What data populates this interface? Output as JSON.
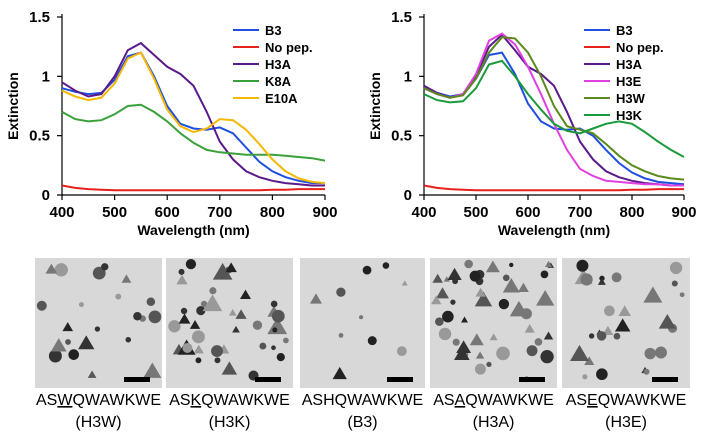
{
  "chart_data": [
    {
      "type": "line",
      "xlabel": "Wavelength (nm)",
      "ylabel": "Extinction",
      "x": [
        400,
        425,
        450,
        475,
        500,
        525,
        550,
        575,
        600,
        625,
        650,
        675,
        700,
        725,
        750,
        775,
        800,
        825,
        850,
        875,
        900
      ],
      "xlim": [
        400,
        900
      ],
      "xticks": [
        400,
        500,
        600,
        700,
        800,
        900
      ],
      "ylim": [
        0,
        1.5
      ],
      "yticks": [
        0,
        0.5,
        1,
        1.5
      ],
      "legend": "upper right",
      "series": [
        {
          "name": "B3",
          "color": "#1f4fe0",
          "values": [
            0.9,
            0.87,
            0.85,
            0.86,
            0.97,
            1.17,
            1.2,
            1.0,
            0.75,
            0.6,
            0.56,
            0.55,
            0.57,
            0.52,
            0.4,
            0.28,
            0.2,
            0.15,
            0.12,
            0.1,
            0.1
          ]
        },
        {
          "name": "No pep.",
          "color": "#e8201a",
          "values": [
            0.08,
            0.06,
            0.05,
            0.045,
            0.04,
            0.04,
            0.04,
            0.04,
            0.04,
            0.04,
            0.04,
            0.04,
            0.04,
            0.04,
            0.04,
            0.04,
            0.045,
            0.045,
            0.05,
            0.05,
            0.05
          ]
        },
        {
          "name": "H3A",
          "color": "#5a1a8a",
          "values": [
            0.95,
            0.88,
            0.83,
            0.85,
            1.0,
            1.22,
            1.28,
            1.18,
            1.08,
            1.02,
            0.92,
            0.7,
            0.45,
            0.3,
            0.2,
            0.15,
            0.12,
            0.1,
            0.09,
            0.08,
            0.08
          ]
        },
        {
          "name": "K8A",
          "color": "#3aa03a",
          "values": [
            0.7,
            0.64,
            0.62,
            0.63,
            0.68,
            0.75,
            0.76,
            0.7,
            0.62,
            0.52,
            0.44,
            0.38,
            0.36,
            0.35,
            0.34,
            0.34,
            0.34,
            0.33,
            0.32,
            0.31,
            0.29
          ]
        },
        {
          "name": "E10A",
          "color": "#f5b800",
          "values": [
            0.88,
            0.83,
            0.8,
            0.82,
            0.94,
            1.15,
            1.2,
            0.98,
            0.72,
            0.58,
            0.53,
            0.56,
            0.64,
            0.63,
            0.55,
            0.43,
            0.3,
            0.2,
            0.14,
            0.11,
            0.1
          ]
        }
      ]
    },
    {
      "type": "line",
      "xlabel": "Wavelength (nm)",
      "ylabel": "Extinction",
      "x": [
        400,
        425,
        450,
        475,
        500,
        525,
        550,
        575,
        600,
        625,
        650,
        675,
        700,
        725,
        750,
        775,
        800,
        825,
        850,
        875,
        900
      ],
      "xlim": [
        400,
        900
      ],
      "xticks": [
        400,
        500,
        600,
        700,
        800,
        900
      ],
      "ylim": [
        0,
        1.5
      ],
      "yticks": [
        0,
        0.5,
        1,
        1.5
      ],
      "legend": "upper right",
      "series": [
        {
          "name": "B3",
          "color": "#1f4fe0",
          "values": [
            0.9,
            0.86,
            0.83,
            0.85,
            0.98,
            1.18,
            1.2,
            1.02,
            0.77,
            0.62,
            0.56,
            0.55,
            0.56,
            0.5,
            0.38,
            0.27,
            0.19,
            0.14,
            0.11,
            0.1,
            0.09
          ]
        },
        {
          "name": "No pep.",
          "color": "#e8201a",
          "values": [
            0.08,
            0.06,
            0.05,
            0.045,
            0.04,
            0.04,
            0.04,
            0.04,
            0.04,
            0.04,
            0.04,
            0.04,
            0.04,
            0.04,
            0.04,
            0.04,
            0.045,
            0.045,
            0.05,
            0.05,
            0.05
          ]
        },
        {
          "name": "H3A",
          "color": "#5a1a8a",
          "values": [
            0.92,
            0.86,
            0.82,
            0.85,
            1.0,
            1.25,
            1.35,
            1.22,
            1.08,
            1.02,
            0.92,
            0.7,
            0.45,
            0.3,
            0.2,
            0.15,
            0.12,
            0.1,
            0.09,
            0.08,
            0.08
          ]
        },
        {
          "name": "H3E",
          "color": "#e040e0",
          "values": [
            0.9,
            0.85,
            0.82,
            0.85,
            1.02,
            1.3,
            1.36,
            1.27,
            1.08,
            0.85,
            0.6,
            0.38,
            0.22,
            0.16,
            0.12,
            0.11,
            0.1,
            0.09,
            0.09,
            0.08,
            0.08
          ]
        },
        {
          "name": "H3W",
          "color": "#5a8a1a",
          "values": [
            0.9,
            0.85,
            0.82,
            0.84,
            0.98,
            1.2,
            1.33,
            1.32,
            1.2,
            1.0,
            0.75,
            0.58,
            0.55,
            0.52,
            0.43,
            0.33,
            0.25,
            0.2,
            0.16,
            0.14,
            0.13
          ]
        },
        {
          "name": "H3K",
          "color": "#1a9a3a",
          "values": [
            0.85,
            0.8,
            0.78,
            0.79,
            0.9,
            1.1,
            1.13,
            1.0,
            0.85,
            0.72,
            0.6,
            0.54,
            0.52,
            0.56,
            0.6,
            0.62,
            0.6,
            0.53,
            0.45,
            0.38,
            0.32
          ]
        }
      ]
    }
  ],
  "panels": [
    {
      "sequence": {
        "before": "AS",
        "underlined": "W",
        "after": "QWAWKWE"
      },
      "label": "(H3W)"
    },
    {
      "sequence": {
        "before": "AS",
        "underlined": "K",
        "after": "QWAWKWE"
      },
      "label": "(H3K)"
    },
    {
      "sequence": {
        "before": "ASHQWAWKWE"
      },
      "label": "(B3)"
    },
    {
      "sequence": {
        "before": "AS",
        "underlined": "A",
        "after": "QWAWKWE"
      },
      "label": "(H3A)"
    },
    {
      "sequence": {
        "before": "AS",
        "underlined": "E",
        "after": "QWAWKWE"
      },
      "label": "(H3E)"
    }
  ]
}
